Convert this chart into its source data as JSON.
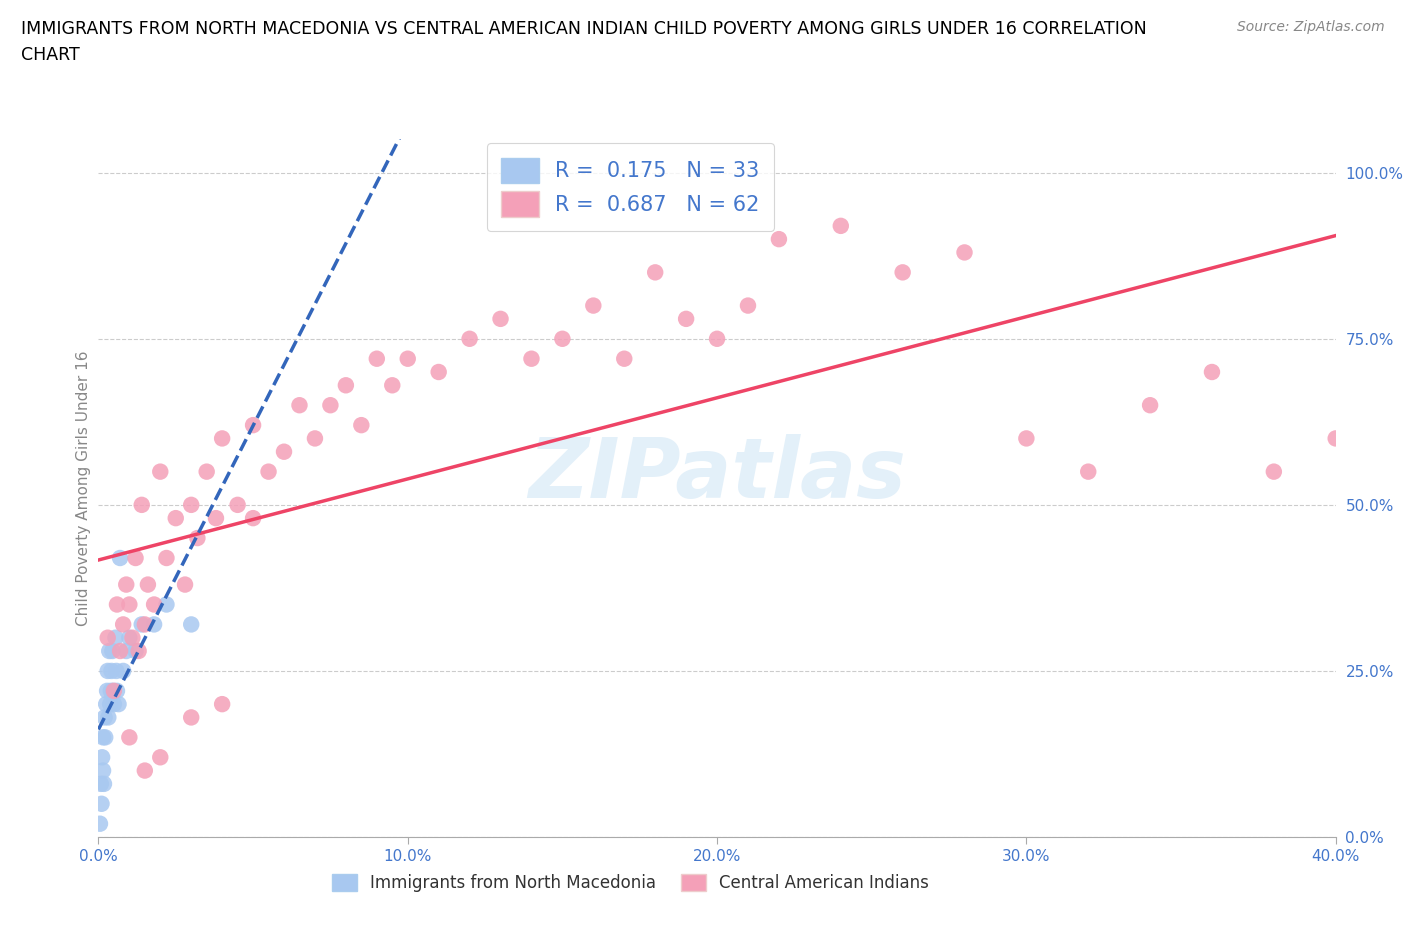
{
  "title_line1": "IMMIGRANTS FROM NORTH MACEDONIA VS CENTRAL AMERICAN INDIAN CHILD POVERTY AMONG GIRLS UNDER 16 CORRELATION",
  "title_line2": "CHART",
  "source": "Source: ZipAtlas.com",
  "ylabel": "Child Poverty Among Girls Under 16",
  "xlim": [
    0.0,
    40.0
  ],
  "ylim": [
    0.0,
    1.05
  ],
  "ytick_vals": [
    0.0,
    0.25,
    0.5,
    0.75,
    1.0
  ],
  "ytick_labels": [
    "0.0%",
    "25.0%",
    "50.0%",
    "75.0%",
    "100.0%"
  ],
  "xtick_vals": [
    0.0,
    10.0,
    20.0,
    30.0,
    40.0
  ],
  "xtick_labels": [
    "0.0%",
    "10.0%",
    "20.0%",
    "30.0%",
    "40.0%"
  ],
  "r_blue": 0.175,
  "n_blue": 33,
  "r_pink": 0.687,
  "n_pink": 62,
  "legend_label_blue": "Immigrants from North Macedonia",
  "legend_label_pink": "Central American Indians",
  "blue_face": "#a8c8f0",
  "pink_face": "#f4a0b8",
  "blue_line": "#3366bb",
  "pink_line": "#ee4466",
  "tick_color": "#4477cc",
  "watermark_text": "ZIPatlas",
  "grid_color": "#cccccc",
  "blue_x": [
    0.05,
    0.08,
    0.1,
    0.12,
    0.15,
    0.15,
    0.18,
    0.2,
    0.22,
    0.25,
    0.28,
    0.3,
    0.32,
    0.35,
    0.38,
    0.4,
    0.42,
    0.45,
    0.48,
    0.5,
    0.55,
    0.58,
    0.6,
    0.65,
    0.7,
    0.8,
    0.9,
    1.0,
    1.2,
    1.4,
    1.8,
    2.2,
    3.0
  ],
  "blue_y": [
    0.02,
    0.08,
    0.05,
    0.12,
    0.1,
    0.15,
    0.08,
    0.18,
    0.15,
    0.2,
    0.22,
    0.25,
    0.18,
    0.28,
    0.2,
    0.22,
    0.25,
    0.28,
    0.22,
    0.2,
    0.3,
    0.25,
    0.22,
    0.2,
    0.42,
    0.25,
    0.28,
    0.3,
    0.28,
    0.32,
    0.32,
    0.35,
    0.32
  ],
  "pink_x": [
    0.3,
    0.5,
    0.6,
    0.7,
    0.8,
    0.9,
    1.0,
    1.1,
    1.2,
    1.3,
    1.4,
    1.5,
    1.6,
    1.8,
    2.0,
    2.2,
    2.5,
    2.8,
    3.0,
    3.2,
    3.5,
    3.8,
    4.0,
    4.5,
    5.0,
    5.5,
    6.0,
    6.5,
    7.0,
    7.5,
    8.0,
    8.5,
    9.0,
    9.5,
    10.0,
    11.0,
    12.0,
    13.0,
    14.0,
    15.0,
    16.0,
    17.0,
    18.0,
    19.0,
    20.0,
    21.0,
    22.0,
    24.0,
    26.0,
    28.0,
    30.0,
    32.0,
    34.0,
    36.0,
    38.0,
    40.0,
    1.0,
    1.5,
    2.0,
    3.0,
    4.0,
    5.0
  ],
  "pink_y": [
    0.3,
    0.22,
    0.35,
    0.28,
    0.32,
    0.38,
    0.35,
    0.3,
    0.42,
    0.28,
    0.5,
    0.32,
    0.38,
    0.35,
    0.55,
    0.42,
    0.48,
    0.38,
    0.5,
    0.45,
    0.55,
    0.48,
    0.6,
    0.5,
    0.62,
    0.55,
    0.58,
    0.65,
    0.6,
    0.65,
    0.68,
    0.62,
    0.72,
    0.68,
    0.72,
    0.7,
    0.75,
    0.78,
    0.72,
    0.75,
    0.8,
    0.72,
    0.85,
    0.78,
    0.75,
    0.8,
    0.9,
    0.92,
    0.85,
    0.88,
    0.6,
    0.55,
    0.65,
    0.7,
    0.55,
    0.6,
    0.15,
    0.1,
    0.12,
    0.18,
    0.2,
    0.48
  ]
}
